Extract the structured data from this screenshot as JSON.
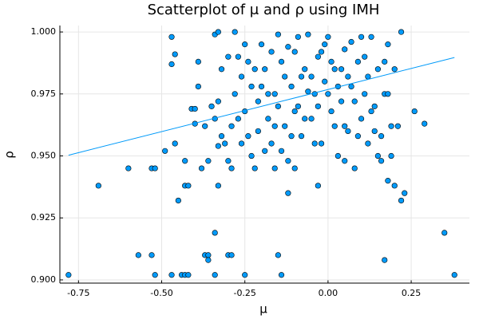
{
  "chart_data": {
    "type": "scatter",
    "title": "Scatterplot of μ and ρ using IMH",
    "x_label": "μ",
    "y_label": "ρ",
    "color": "#009af9",
    "grid": true,
    "xlim": [
      -0.806,
      0.425
    ],
    "ylim": [
      0.8987,
      1.0026
    ],
    "xticks": [
      {
        "value": -0.75,
        "label": "-0.75"
      },
      {
        "value": -0.5,
        "label": "-0.50"
      },
      {
        "value": -0.25,
        "label": "-0.25"
      },
      {
        "value": 0,
        "label": "0.00"
      },
      {
        "value": 0.25,
        "label": "0.25"
      }
    ],
    "yticks": [
      {
        "value": 0.9,
        "label": "0.900"
      },
      {
        "value": 0.925,
        "label": "0.925"
      },
      {
        "value": 0.95,
        "label": "0.950"
      },
      {
        "value": 0.975,
        "label": "0.975"
      },
      {
        "value": 1.0,
        "label": "1.000"
      }
    ],
    "x": [
      -0.78,
      -0.69,
      -0.6,
      -0.57,
      -0.53,
      -0.52,
      -0.53,
      -0.52,
      -0.49,
      -0.47,
      -0.47,
      -0.46,
      -0.46,
      -0.45,
      -0.47,
      -0.44,
      -0.43,
      -0.42,
      -0.43,
      -0.42,
      -0.43,
      -0.41,
      -0.4,
      -0.4,
      -0.39,
      -0.39,
      -0.38,
      -0.37,
      -0.36,
      -0.36,
      -0.34,
      -0.34,
      -0.33,
      -0.3,
      -0.29,
      -0.25,
      -0.15,
      -0.14,
      -0.12,
      -0.03,
      0.17,
      0.2,
      0.22,
      0.23,
      0.26,
      0.29,
      0.35,
      0.38,
      0.18,
      0.16,
      -0.34,
      -0.33,
      -0.32,
      -0.33,
      -0.34,
      -0.32,
      -0.33,
      -0.31,
      -0.3,
      -0.29,
      -0.28,
      -0.27,
      -0.28,
      -0.26,
      -0.25,
      -0.24,
      -0.23,
      -0.22,
      -0.21,
      -0.2,
      -0.19,
      -0.18,
      -0.17,
      -0.16,
      -0.15,
      -0.14,
      -0.13,
      -0.12,
      -0.11,
      -0.1,
      -0.09,
      -0.08,
      -0.07,
      -0.06,
      -0.05,
      -0.04,
      -0.03,
      -0.02,
      -0.01,
      0.0,
      0.01,
      0.02,
      0.03,
      0.04,
      0.05,
      0.06,
      0.07,
      0.08,
      0.09,
      0.1,
      0.11,
      0.12,
      0.13,
      0.14,
      0.15,
      0.16,
      0.17,
      0.18,
      0.2,
      0.22,
      0.21,
      0.19,
      -0.3,
      -0.27,
      -0.25,
      -0.23,
      -0.21,
      -0.19,
      -0.17,
      -0.15,
      -0.13,
      -0.11,
      -0.09,
      -0.07,
      -0.05,
      -0.03,
      -0.01,
      0.01,
      0.03,
      0.05,
      0.07,
      0.09,
      0.11,
      0.13,
      0.15,
      0.17,
      -0.24,
      -0.2,
      -0.16,
      -0.12,
      -0.08,
      -0.04,
      0.0,
      0.04,
      0.08,
      0.12,
      -0.26,
      -0.22,
      -0.18,
      -0.14,
      -0.1,
      -0.06,
      -0.02,
      0.02,
      0.06,
      0.1,
      0.14,
      -0.36,
      -0.35,
      -0.37,
      0.18,
      0.19,
      -0.29,
      -0.1,
      0.05,
      -0.16
    ],
    "values": [
      0.902,
      0.938,
      0.945,
      0.91,
      0.91,
      0.902,
      0.945,
      0.945,
      0.952,
      0.998,
      0.987,
      0.991,
      0.955,
      0.932,
      0.902,
      0.902,
      0.902,
      0.902,
      0.938,
      0.938,
      0.948,
      0.969,
      0.969,
      0.963,
      0.978,
      0.988,
      0.945,
      0.91,
      0.91,
      0.908,
      0.919,
      0.902,
      0.938,
      0.91,
      0.91,
      0.902,
      0.91,
      0.902,
      0.935,
      0.938,
      0.908,
      0.938,
      0.932,
      0.935,
      0.968,
      0.963,
      0.919,
      0.902,
      0.94,
      0.948,
      0.999,
      1.0,
      0.985,
      0.972,
      0.965,
      0.958,
      0.954,
      0.955,
      0.948,
      0.962,
      0.975,
      0.99,
      1.0,
      0.982,
      0.968,
      0.958,
      0.95,
      0.945,
      0.972,
      0.995,
      0.985,
      0.965,
      0.955,
      0.975,
      0.999,
      0.988,
      0.962,
      0.948,
      0.978,
      0.992,
      0.97,
      0.958,
      0.985,
      0.999,
      0.965,
      0.975,
      0.99,
      0.955,
      0.98,
      0.998,
      0.968,
      0.985,
      0.95,
      0.972,
      0.993,
      0.96,
      0.978,
      0.945,
      0.988,
      0.965,
      0.975,
      0.955,
      0.998,
      0.97,
      0.985,
      0.958,
      0.975,
      0.995,
      0.985,
      1.0,
      0.962,
      0.95,
      0.99,
      0.965,
      0.995,
      0.978,
      0.96,
      0.952,
      0.992,
      0.97,
      0.982,
      0.958,
      0.998,
      0.965,
      0.982,
      0.97,
      0.995,
      0.988,
      0.978,
      0.962,
      0.996,
      0.958,
      0.99,
      0.968,
      0.95,
      0.988,
      0.988,
      0.978,
      0.962,
      0.994,
      0.982,
      0.955,
      0.975,
      0.985,
      0.972,
      0.982,
      0.955,
      0.985,
      0.975,
      0.952,
      0.968,
      0.976,
      0.992,
      0.962,
      0.982,
      0.998,
      0.96,
      0.948,
      0.97,
      0.962,
      0.975,
      0.962,
      0.945,
      0.945,
      0.948,
      0.945
    ],
    "fit": {
      "x": [
        -0.78,
        0.38
      ],
      "values": [
        0.9503,
        0.9897
      ]
    }
  }
}
